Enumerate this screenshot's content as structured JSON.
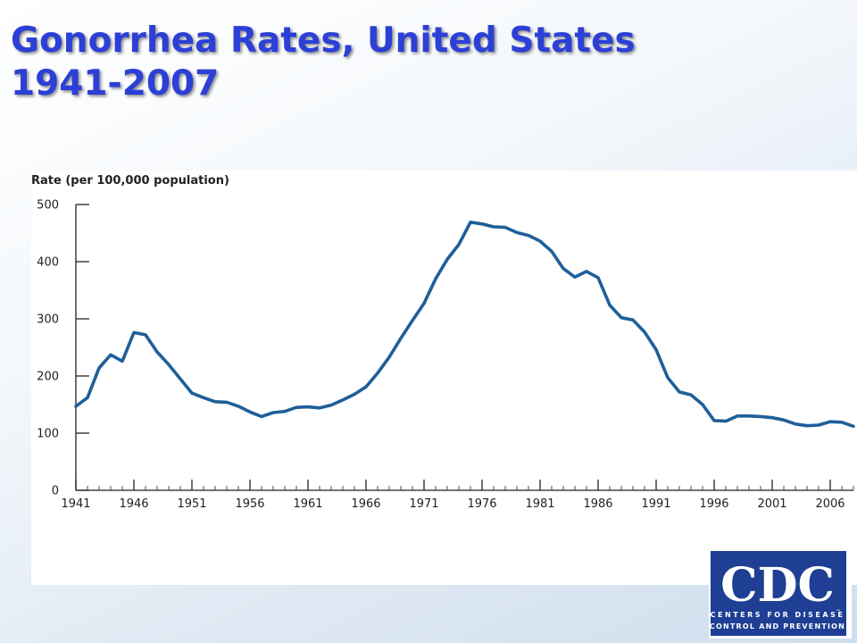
{
  "slide": {
    "title_line1": "Gonorrhea Rates, United States",
    "title_line2": "1941-2007",
    "title_color": "#2c3fd6"
  },
  "chart_data": {
    "type": "line",
    "title": "",
    "xlabel": "",
    "ylabel": "Rate (per 100,000 population)",
    "ylim": [
      0,
      500
    ],
    "xlim": [
      1941,
      2008
    ],
    "yticks": [
      0,
      100,
      200,
      300,
      400,
      500
    ],
    "xticks": [
      1941,
      1946,
      1951,
      1956,
      1961,
      1966,
      1971,
      1976,
      1981,
      1986,
      1991,
      1996,
      2001,
      2006
    ],
    "grid": false,
    "legend": "none",
    "line_color": "#1f5f99",
    "series": [
      {
        "name": "",
        "x": [
          1941,
          1942,
          1943,
          1944,
          1945,
          1946,
          1947,
          1948,
          1949,
          1950,
          1951,
          1952,
          1953,
          1954,
          1955,
          1956,
          1957,
          1958,
          1959,
          1960,
          1961,
          1962,
          1963,
          1964,
          1965,
          1966,
          1967,
          1968,
          1969,
          1970,
          1971,
          1972,
          1973,
          1974,
          1975,
          1976,
          1977,
          1978,
          1979,
          1980,
          1981,
          1982,
          1983,
          1984,
          1985,
          1986,
          1987,
          1988,
          1989,
          1990,
          1991,
          1992,
          1993,
          1994,
          1995,
          1996,
          1997,
          1998,
          1999,
          2000,
          2001,
          2002,
          2003,
          2004,
          2005,
          2006,
          2007,
          2008
        ],
        "values": [
          147,
          162,
          214,
          237,
          226,
          276,
          272,
          242,
          220,
          195,
          170,
          162,
          155,
          154,
          147,
          137,
          129,
          136,
          138,
          145,
          146,
          144,
          149,
          158,
          168,
          181,
          205,
          233,
          266,
          297,
          327,
          370,
          404,
          430,
          469,
          466,
          461,
          460,
          451,
          446,
          436,
          418,
          388,
          373,
          383,
          372,
          324,
          302,
          298,
          277,
          246,
          197,
          172,
          167,
          150,
          122,
          121,
          130,
          130,
          129,
          127,
          123,
          116,
          113,
          114,
          120,
          119,
          112
        ]
      }
    ]
  },
  "logo": {
    "letters": "CDC",
    "line1": "CENTERS FOR DISEASE",
    "line2": "CONTROL AND PREVENTION",
    "tm": "™",
    "color": "#1e3f93"
  }
}
